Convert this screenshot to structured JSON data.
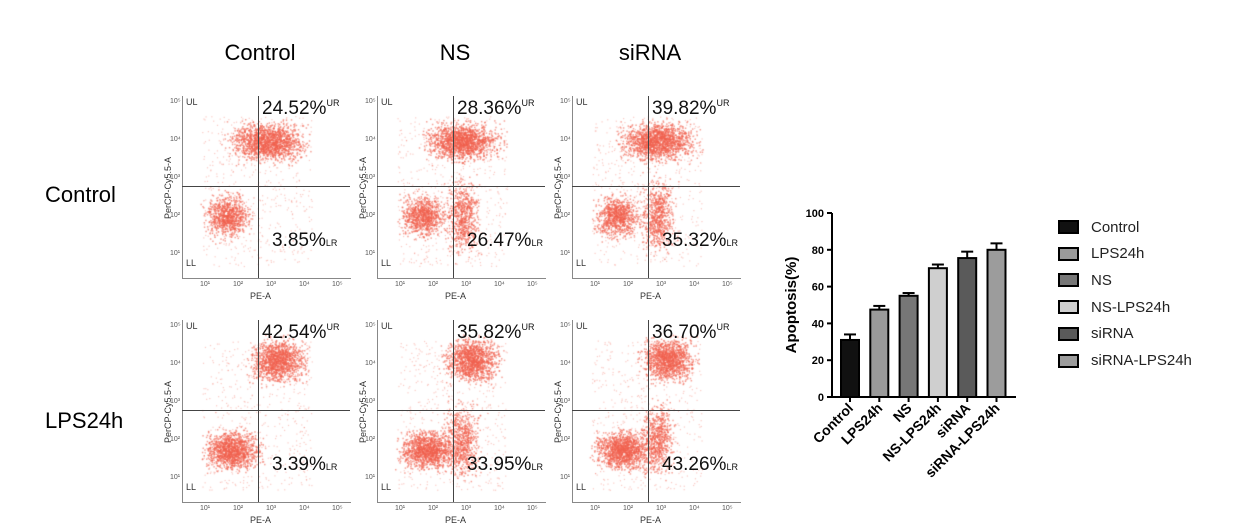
{
  "column_titles": [
    "Control",
    "NS",
    "siRNA"
  ],
  "row_labels": [
    "Control",
    "LPS24h"
  ],
  "flow_panels": [
    {
      "row": 0,
      "col": 0,
      "ur": "24.52%",
      "lr": "3.85%"
    },
    {
      "row": 0,
      "col": 1,
      "ur": "28.36%",
      "lr": "26.47%"
    },
    {
      "row": 0,
      "col": 2,
      "ur": "39.82%",
      "lr": "35.32%"
    },
    {
      "row": 1,
      "col": 0,
      "ur": "42.54%",
      "lr": "3.39%"
    },
    {
      "row": 1,
      "col": 1,
      "ur": "35.82%",
      "lr": "33.95%"
    },
    {
      "row": 1,
      "col": 2,
      "ur": "36.70%",
      "lr": "43.26%"
    }
  ],
  "flow_labels": {
    "ul": "UL",
    "ll": "LL",
    "ur": "UR",
    "lr": "LR",
    "xlabel": "PE-A",
    "ylabel": "PerCP-Cy5.5-A",
    "xticks": [
      "10¹",
      "10²",
      "10³",
      "10⁴",
      "10⁵"
    ],
    "yticks": [
      "10⁵",
      "10⁴",
      "10³",
      "10²",
      "10¹"
    ]
  },
  "dot_color": "#f0604f",
  "chart_data": {
    "type": "bar",
    "title": "",
    "xlabel": "",
    "ylabel": "Apoptosis(%)",
    "ylim": [
      0,
      100
    ],
    "yticks": [
      "0",
      "20",
      "40",
      "60",
      "80",
      "100"
    ],
    "categories": [
      "Control",
      "LPS24h",
      "NS",
      "NS-LPS24h",
      "siRNA",
      "siRNA-LPS24h"
    ],
    "values": [
      31,
      47.5,
      55,
      70,
      75.5,
      80
    ],
    "errors": [
      3,
      2,
      1.5,
      2,
      3.5,
      3.5
    ],
    "colors": [
      "#111111",
      "#9a9a9a",
      "#777777",
      "#cfcfcf",
      "#5a5a5a",
      "#9c9c9c"
    ],
    "legend": [
      "Control",
      "LPS24h",
      "NS",
      "NS-LPS24h",
      "siRNA",
      "siRNA-LPS24h"
    ],
    "legend_position": "right"
  }
}
